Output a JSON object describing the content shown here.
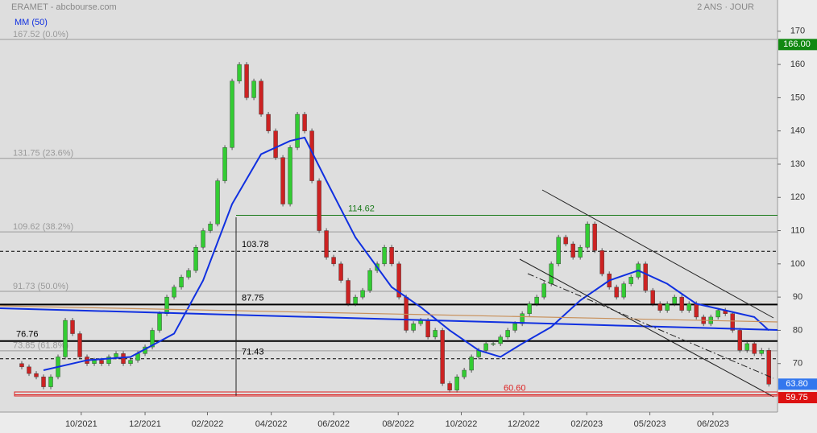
{
  "chart_data": {
    "type": "candlestick",
    "title": "ERAMET - abcbourse.com",
    "subtitle": "2 ANS · JOUR",
    "xlim": [
      -2,
      105.2
    ],
    "ylim": [
      55.4,
      179.4
    ],
    "yticks": [
      70,
      80,
      90,
      100,
      110,
      120,
      130,
      140,
      150,
      160,
      170
    ],
    "xticks": [
      {
        "value": 9.2,
        "label": "10/2021"
      },
      {
        "value": 18,
        "label": "12/2021"
      },
      {
        "value": 26.6,
        "label": "02/2022"
      },
      {
        "value": 35.4,
        "label": "04/2022"
      },
      {
        "value": 44,
        "label": "06/2022"
      },
      {
        "value": 52.9,
        "label": "08/2022"
      },
      {
        "value": 61.6,
        "label": "10/2022"
      },
      {
        "value": 70.2,
        "label": "12/2022"
      },
      {
        "value": 78.9,
        "label": "02/2023"
      },
      {
        "value": 87.6,
        "label": "05/2023"
      },
      {
        "value": 96.3,
        "label": "06/2023"
      }
    ],
    "close": [
      70,
      69,
      67,
      66,
      63,
      66,
      72,
      83,
      79,
      72,
      70,
      71,
      70,
      72,
      73,
      70,
      71,
      73,
      75,
      80,
      85,
      90,
      93,
      96,
      98,
      105,
      110,
      112,
      125,
      135,
      155,
      160,
      150,
      155,
      145,
      140,
      132,
      118,
      135,
      145,
      140,
      125,
      110,
      102,
      100,
      95,
      88,
      90,
      92,
      98,
      100,
      105,
      100,
      90,
      80,
      82,
      83,
      78,
      80,
      64,
      62,
      66,
      68,
      72,
      74,
      76,
      76,
      78,
      80,
      82,
      85,
      88,
      90,
      94,
      100,
      108,
      106,
      102,
      105,
      112,
      104,
      97,
      93,
      90,
      94,
      96,
      100,
      92,
      88,
      86,
      88,
      90,
      86,
      88,
      84,
      82,
      84,
      86,
      85,
      80,
      74,
      76,
      73,
      74,
      63.8
    ],
    "up_color": "#33cc33",
    "down_color": "#cc2222",
    "ma": {
      "name": "MM (50)",
      "color": "#1030e0",
      "x": [
        4,
        10,
        16,
        22,
        26,
        30,
        34,
        38,
        40,
        43,
        47,
        52,
        56,
        60,
        64,
        67,
        70,
        74,
        78,
        82,
        86,
        90,
        94,
        98,
        102,
        104
      ],
      "values": [
        68,
        71,
        72,
        79,
        95,
        118,
        133,
        137,
        138,
        125,
        108,
        93,
        87,
        80,
        74,
        72,
        76,
        81,
        89,
        95,
        98,
        94,
        88,
        86,
        84,
        80
      ]
    },
    "fib_levels": [
      {
        "value": 167.52,
        "label": "167.52  (0.0%)"
      },
      {
        "value": 131.75,
        "label": "131.75  (23.6%)"
      },
      {
        "value": 109.62,
        "label": "109.62  (38.2%)"
      },
      {
        "value": 91.73,
        "label": "91.73  (50.0%)"
      },
      {
        "value": 73.85,
        "label": "73.85  (61.8%)"
      }
    ],
    "levels": [
      {
        "value": 103.78,
        "style": "dashed",
        "color": "#000000"
      },
      {
        "value": 87.75,
        "style": "solid",
        "color": "#000000"
      },
      {
        "value": 76.76,
        "style": "solid",
        "color": "#000000"
      },
      {
        "value": 71.43,
        "style": "dashed",
        "color": "#000000"
      },
      {
        "value": 114.62,
        "style": "thin",
        "color": "#1a7a1a"
      },
      {
        "value": 60.6,
        "label": "60.60",
        "style": "thin",
        "color": "#dd2222"
      }
    ],
    "badges": [
      {
        "value": 166,
        "label": "166.00",
        "color": "#118811"
      },
      {
        "value": 63.8,
        "label": "63.80",
        "color": "#3377ee"
      },
      {
        "value": 59.75,
        "label": "59.75",
        "color": "#dd1111"
      }
    ]
  }
}
